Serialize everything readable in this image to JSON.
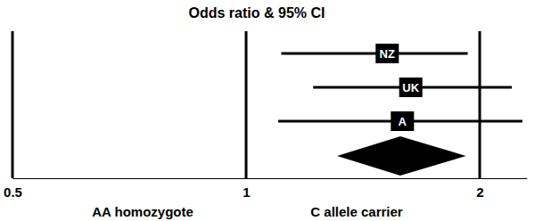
{
  "chart_data": {
    "type": "forest",
    "title": "Odds ratio & 95% CI",
    "log": "x",
    "grid": true,
    "xlim": [
      0.5,
      2.3
    ],
    "xticks": [
      0.5,
      1,
      2
    ],
    "annotations": [
      "AA homozygote",
      "C allele carrier"
    ],
    "categories": [
      "NZ",
      "UK",
      "A"
    ],
    "values": [
      1.52,
      1.63,
      1.59
    ],
    "ci_low": [
      1.11,
      1.22,
      1.1
    ],
    "ci_high": [
      1.93,
      2.2,
      2.27
    ],
    "color": "#000000",
    "summary": {
      "value": 1.58,
      "ci_low": 1.31,
      "ci_high": 1.92
    }
  }
}
